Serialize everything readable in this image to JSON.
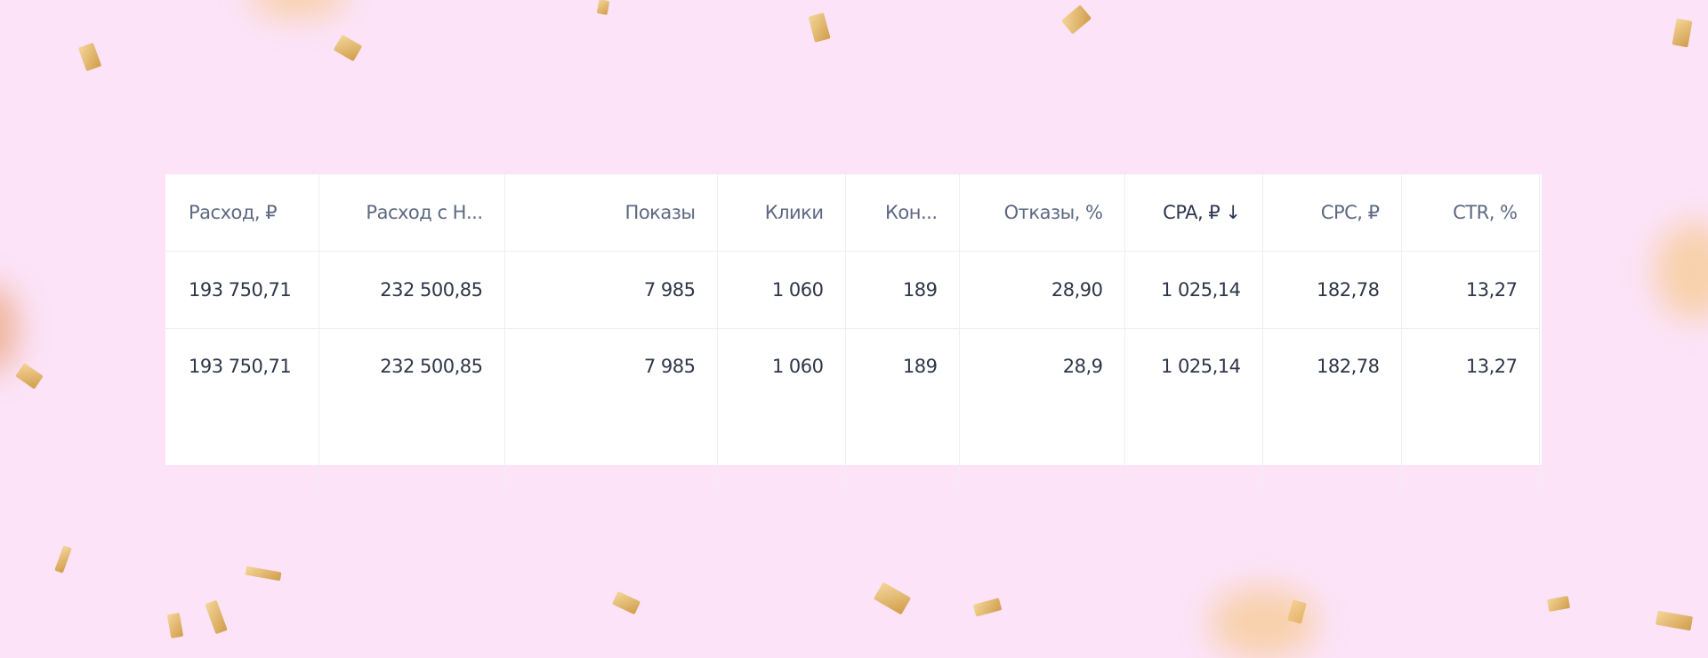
{
  "table": {
    "columns": [
      {
        "label": "Расход, ₽",
        "align": "left"
      },
      {
        "label": "Расход с Н..."
      },
      {
        "label": "Показы"
      },
      {
        "label": "Клики"
      },
      {
        "label": "Кон..."
      },
      {
        "label": "Отказы, %"
      },
      {
        "label": "CPA, ₽ ↓",
        "sorted": "desc"
      },
      {
        "label": "CPC, ₽"
      },
      {
        "label": "CTR, %"
      }
    ],
    "rows": [
      [
        "193 750,71",
        "232 500,85",
        "7 985",
        "1 060",
        "189",
        "28,90",
        "1 025,14",
        "182,78",
        "13,27"
      ],
      [
        "193 750,71",
        "232 500,85",
        "7 985",
        "1 060",
        "189",
        "28,9",
        "1 025,14",
        "182,78",
        "13,27"
      ]
    ]
  },
  "colors": {
    "background": "#fce3f8",
    "header_text": "#5d6882",
    "cell_text": "#2e3648",
    "border": "#eceef3"
  }
}
